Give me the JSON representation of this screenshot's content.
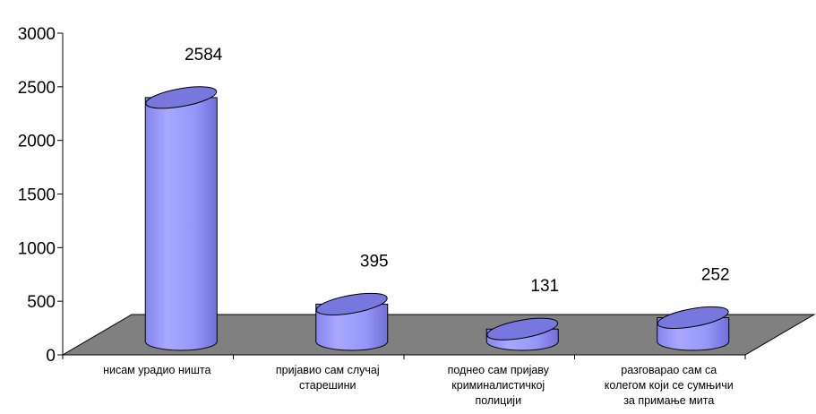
{
  "chart_data": {
    "type": "bar",
    "categories": [
      [
        "нисам урадио ништа"
      ],
      [
        "пријавио сам случај",
        "старешини"
      ],
      [
        "поднео сам пријаву",
        "криминалистичкој",
        "полицији"
      ],
      [
        "разговарао сам са",
        "колегом који се сумњичи",
        "за примање мита"
      ]
    ],
    "values": [
      2584,
      395,
      131,
      252
    ],
    "data_labels": [
      "2584",
      "395",
      "131",
      "252"
    ],
    "y_ticks": [
      "0",
      "500",
      "1000",
      "1500",
      "2000",
      "2500",
      "3000"
    ],
    "ylim": [
      0,
      3000
    ],
    "style": "3d-cylinder",
    "grid": false,
    "legend": "none",
    "colors": {
      "bar_body": "#9999ff",
      "bar_top": "#7777dd",
      "floor": "#808080",
      "outline": "#000000"
    }
  }
}
